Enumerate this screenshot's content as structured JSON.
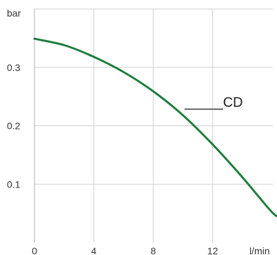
{
  "chart_data": {
    "type": "line",
    "title": "",
    "xlabel": "",
    "ylabel": "",
    "x_unit": "l/min",
    "y_unit": "bar",
    "xlim": [
      0,
      20
    ],
    "ylim": [
      0,
      0.4
    ],
    "x_ticks": [
      {
        "value": 0,
        "label": "0"
      },
      {
        "value": 4,
        "label": "4"
      },
      {
        "value": 8,
        "label": "8"
      },
      {
        "value": 12,
        "label": "12"
      }
    ],
    "y_ticks": [
      {
        "value": 0.1,
        "label": "0.1"
      },
      {
        "value": 0.2,
        "label": "0.2"
      },
      {
        "value": 0.3,
        "label": "0.3"
      }
    ],
    "grid": true,
    "series": [
      {
        "name": "CD",
        "label": "_____CD",
        "color": "#1e7d3c",
        "x": [
          0,
          2,
          4,
          6,
          8,
          10,
          12,
          14,
          16,
          16.6
        ],
        "y": [
          0.349,
          0.338,
          0.318,
          0.292,
          0.259,
          0.218,
          0.168,
          0.112,
          0.052,
          0.044
        ]
      }
    ]
  }
}
